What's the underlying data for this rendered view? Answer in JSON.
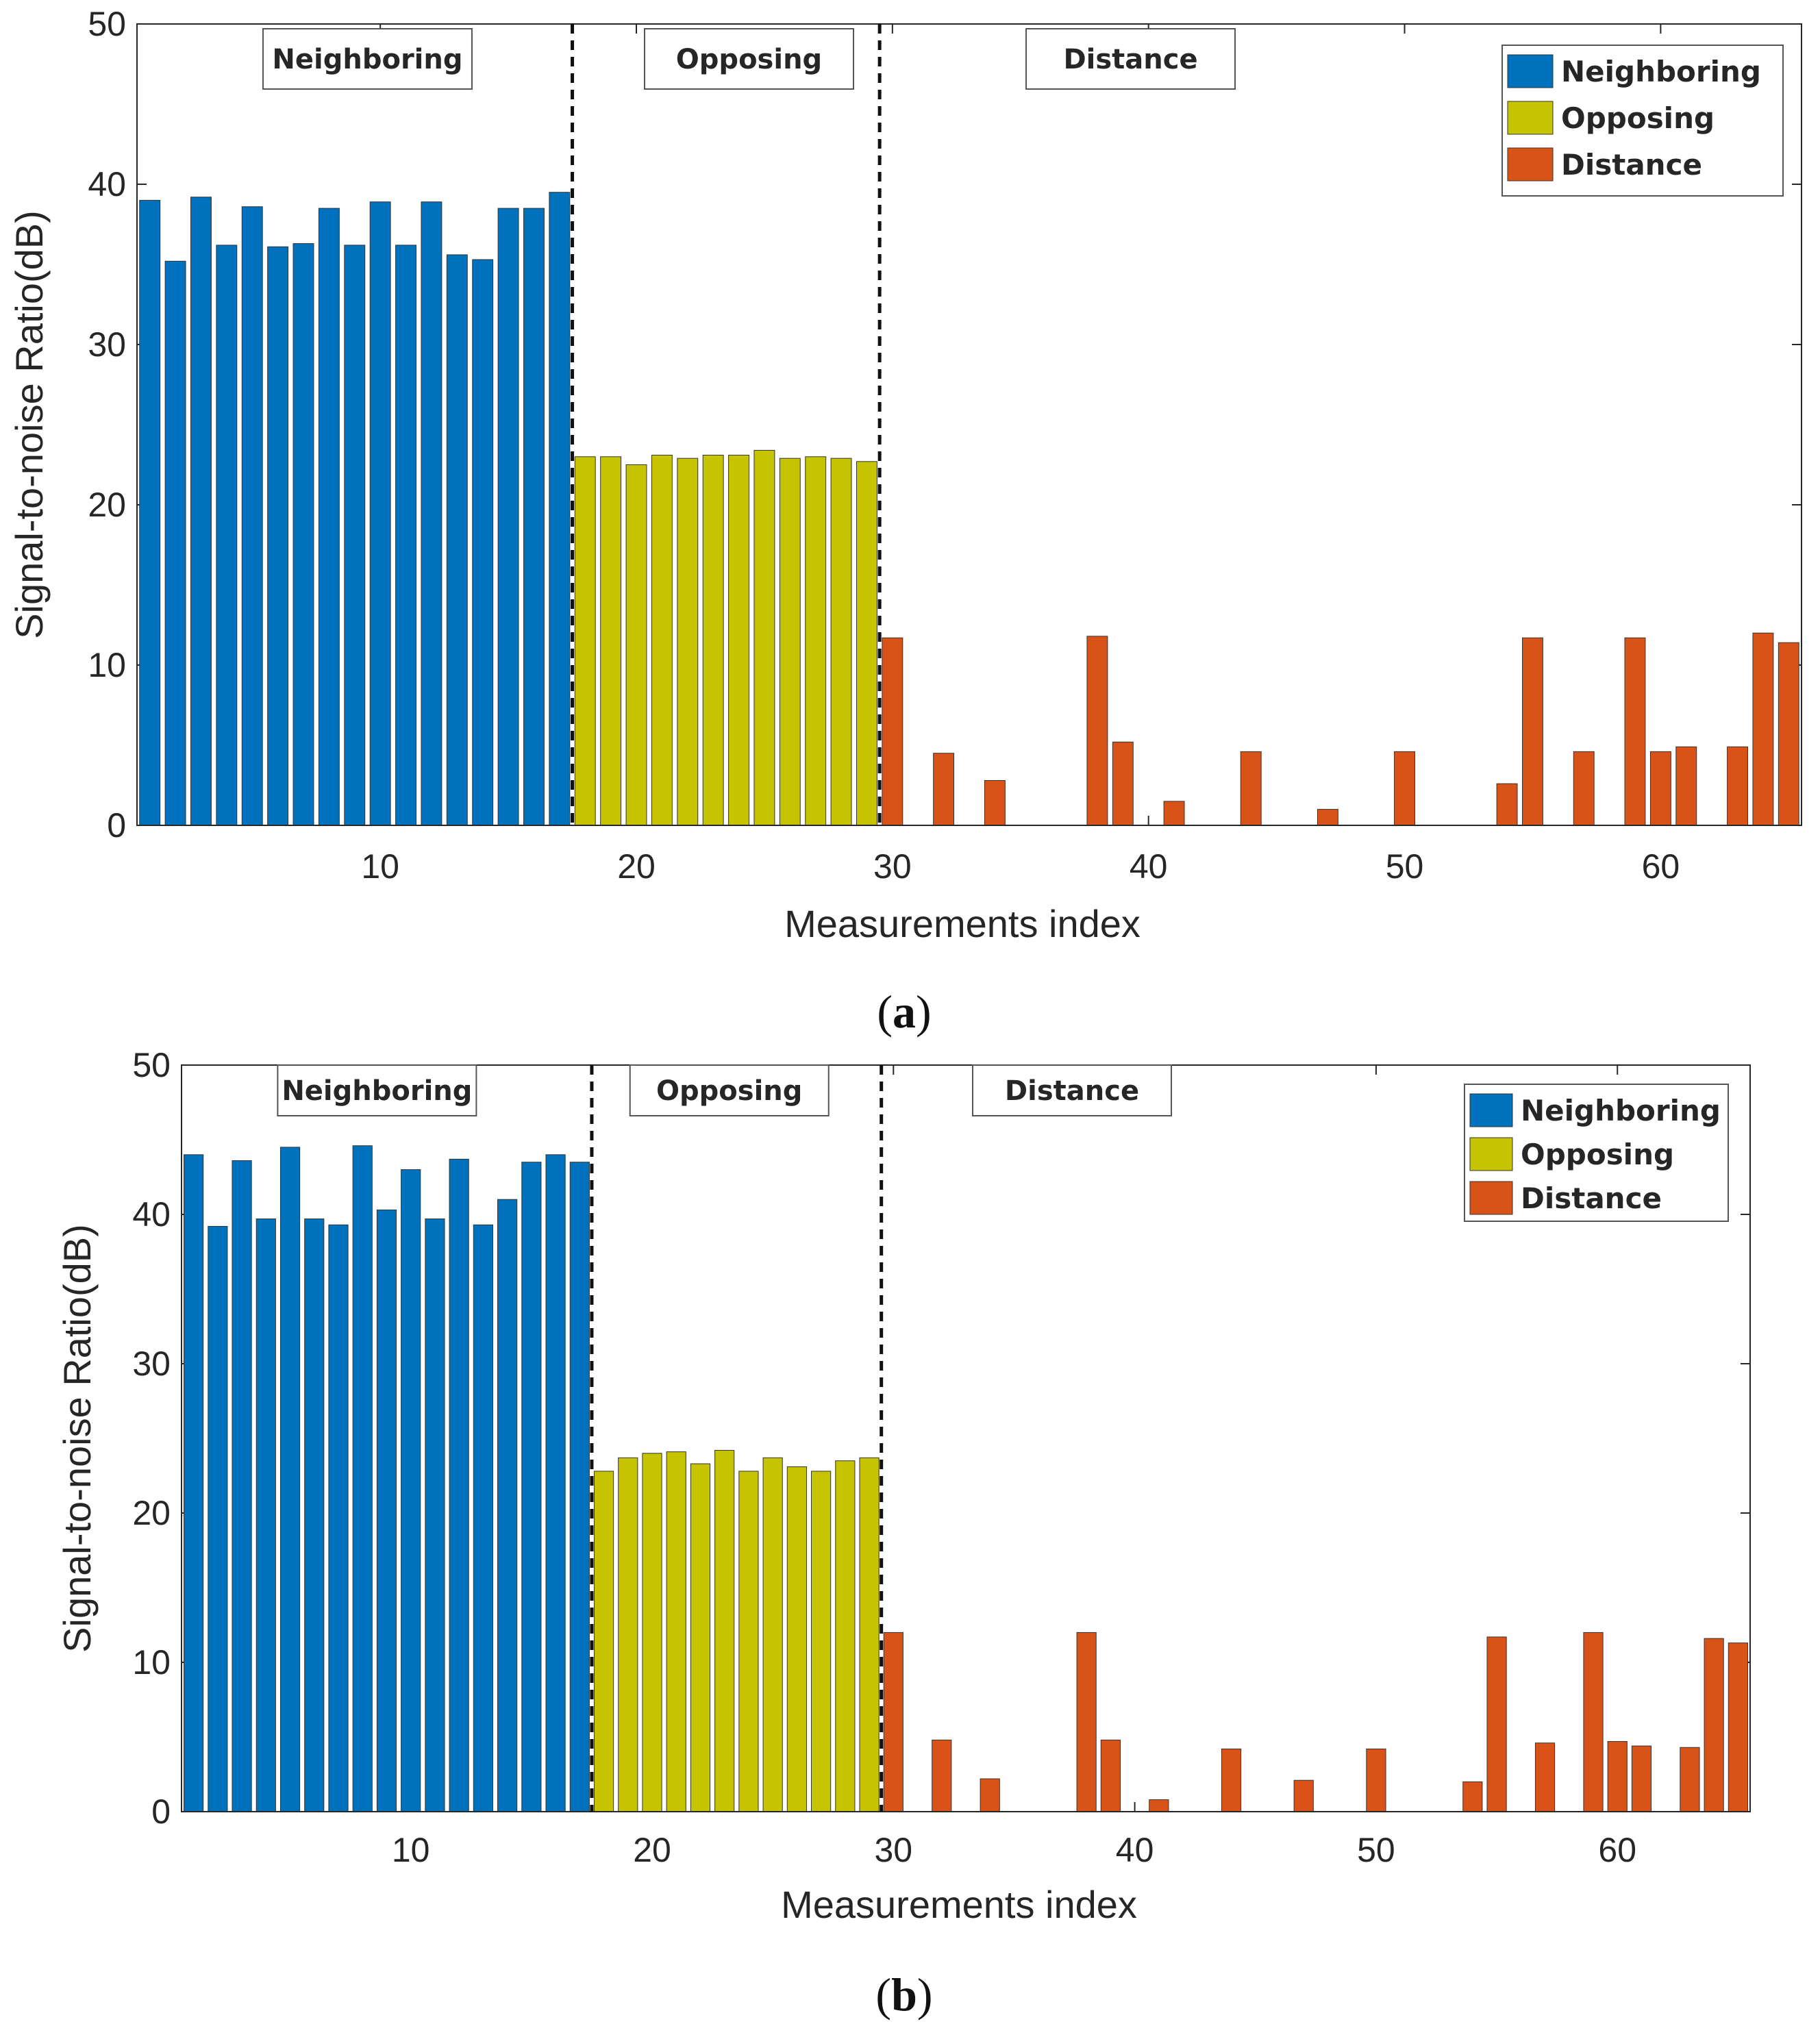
{
  "colors": {
    "Neighboring": "#0072bd",
    "Opposing": "#c6c300",
    "Distance": "#d95319",
    "bar_edge": "#333333",
    "axis": "#262626",
    "divider": "#111111"
  },
  "chart_data": [
    {
      "id": "a",
      "type": "bar",
      "caption_letter": "a",
      "xlabel": "Measurements index",
      "ylabel": "Signal-to-noise Ratio(dB)",
      "xlim": [
        0.5,
        65.5
      ],
      "ylim": [
        0,
        50
      ],
      "xticks": [
        10,
        20,
        30,
        40,
        50,
        60
      ],
      "yticks": [
        0,
        10,
        20,
        30,
        40,
        50
      ],
      "region_dividers": [
        17.5,
        29.5
      ],
      "region_labels": [
        {
          "text": "Neighboring",
          "center": 9.5
        },
        {
          "text": "Opposing",
          "center": 24.4
        },
        {
          "text": "Distance",
          "center": 39.3
        }
      ],
      "legend": [
        "Neighboring",
        "Opposing",
        "Distance"
      ],
      "series": [
        {
          "name": "Neighboring",
          "start": 1,
          "values": [
            39.0,
            35.2,
            39.2,
            36.2,
            38.6,
            36.1,
            36.3,
            38.5,
            36.2,
            38.9,
            36.2,
            38.9,
            35.6,
            35.3,
            38.5,
            38.5,
            39.5
          ]
        },
        {
          "name": "Opposing",
          "start": 18,
          "values": [
            23.0,
            23.0,
            22.5,
            23.1,
            22.9,
            23.1,
            23.1,
            23.4,
            22.9,
            23.0,
            22.9,
            22.7
          ]
        },
        {
          "name": "Distance",
          "start": 30,
          "values": [
            11.7,
            0,
            4.5,
            0,
            2.8,
            0,
            0,
            0,
            11.8,
            5.2,
            0,
            1.5,
            0,
            0,
            4.6,
            0,
            0,
            1.0,
            0,
            0,
            4.6,
            0,
            0,
            0,
            2.6,
            11.7,
            0,
            4.6,
            0,
            11.7,
            4.6,
            4.9,
            0,
            4.9,
            12.0,
            11.4
          ]
        }
      ]
    },
    {
      "id": "b",
      "type": "bar",
      "caption_letter": "b",
      "xlabel": "Measurements index",
      "ylabel": "Signal-to-noise Ratio(dB)",
      "xlim": [
        0.5,
        65.5
      ],
      "ylim": [
        0,
        50
      ],
      "xticks": [
        10,
        20,
        30,
        40,
        50,
        60
      ],
      "yticks": [
        0,
        10,
        20,
        30,
        40,
        50
      ],
      "region_dividers": [
        17.5,
        29.5
      ],
      "region_labels": [
        {
          "text": "Neighboring",
          "center": 8.6
        },
        {
          "text": "Opposing",
          "center": 23.2
        },
        {
          "text": "Distance",
          "center": 37.4
        }
      ],
      "legend": [
        "Neighboring",
        "Opposing",
        "Distance"
      ],
      "series": [
        {
          "name": "Neighboring",
          "start": 1,
          "values": [
            44.0,
            39.2,
            43.6,
            39.7,
            44.5,
            39.7,
            39.3,
            44.6,
            40.3,
            43.0,
            39.7,
            43.7,
            39.3,
            41.0,
            43.5,
            44.0,
            43.5
          ]
        },
        {
          "name": "Opposing",
          "start": 18,
          "values": [
            22.8,
            23.7,
            24.0,
            24.1,
            23.3,
            24.2,
            22.8,
            23.7,
            23.1,
            22.8,
            23.5,
            23.7
          ]
        },
        {
          "name": "Distance",
          "start": 30,
          "values": [
            12.0,
            0,
            4.8,
            0,
            2.2,
            0,
            0,
            0,
            12.0,
            4.8,
            0,
            0.8,
            0,
            0,
            4.2,
            0,
            0,
            2.1,
            0,
            0,
            4.2,
            0,
            0,
            0,
            2.0,
            11.7,
            0,
            4.6,
            0,
            12.0,
            4.7,
            4.4,
            0,
            4.3,
            11.6,
            11.3
          ]
        }
      ]
    }
  ]
}
